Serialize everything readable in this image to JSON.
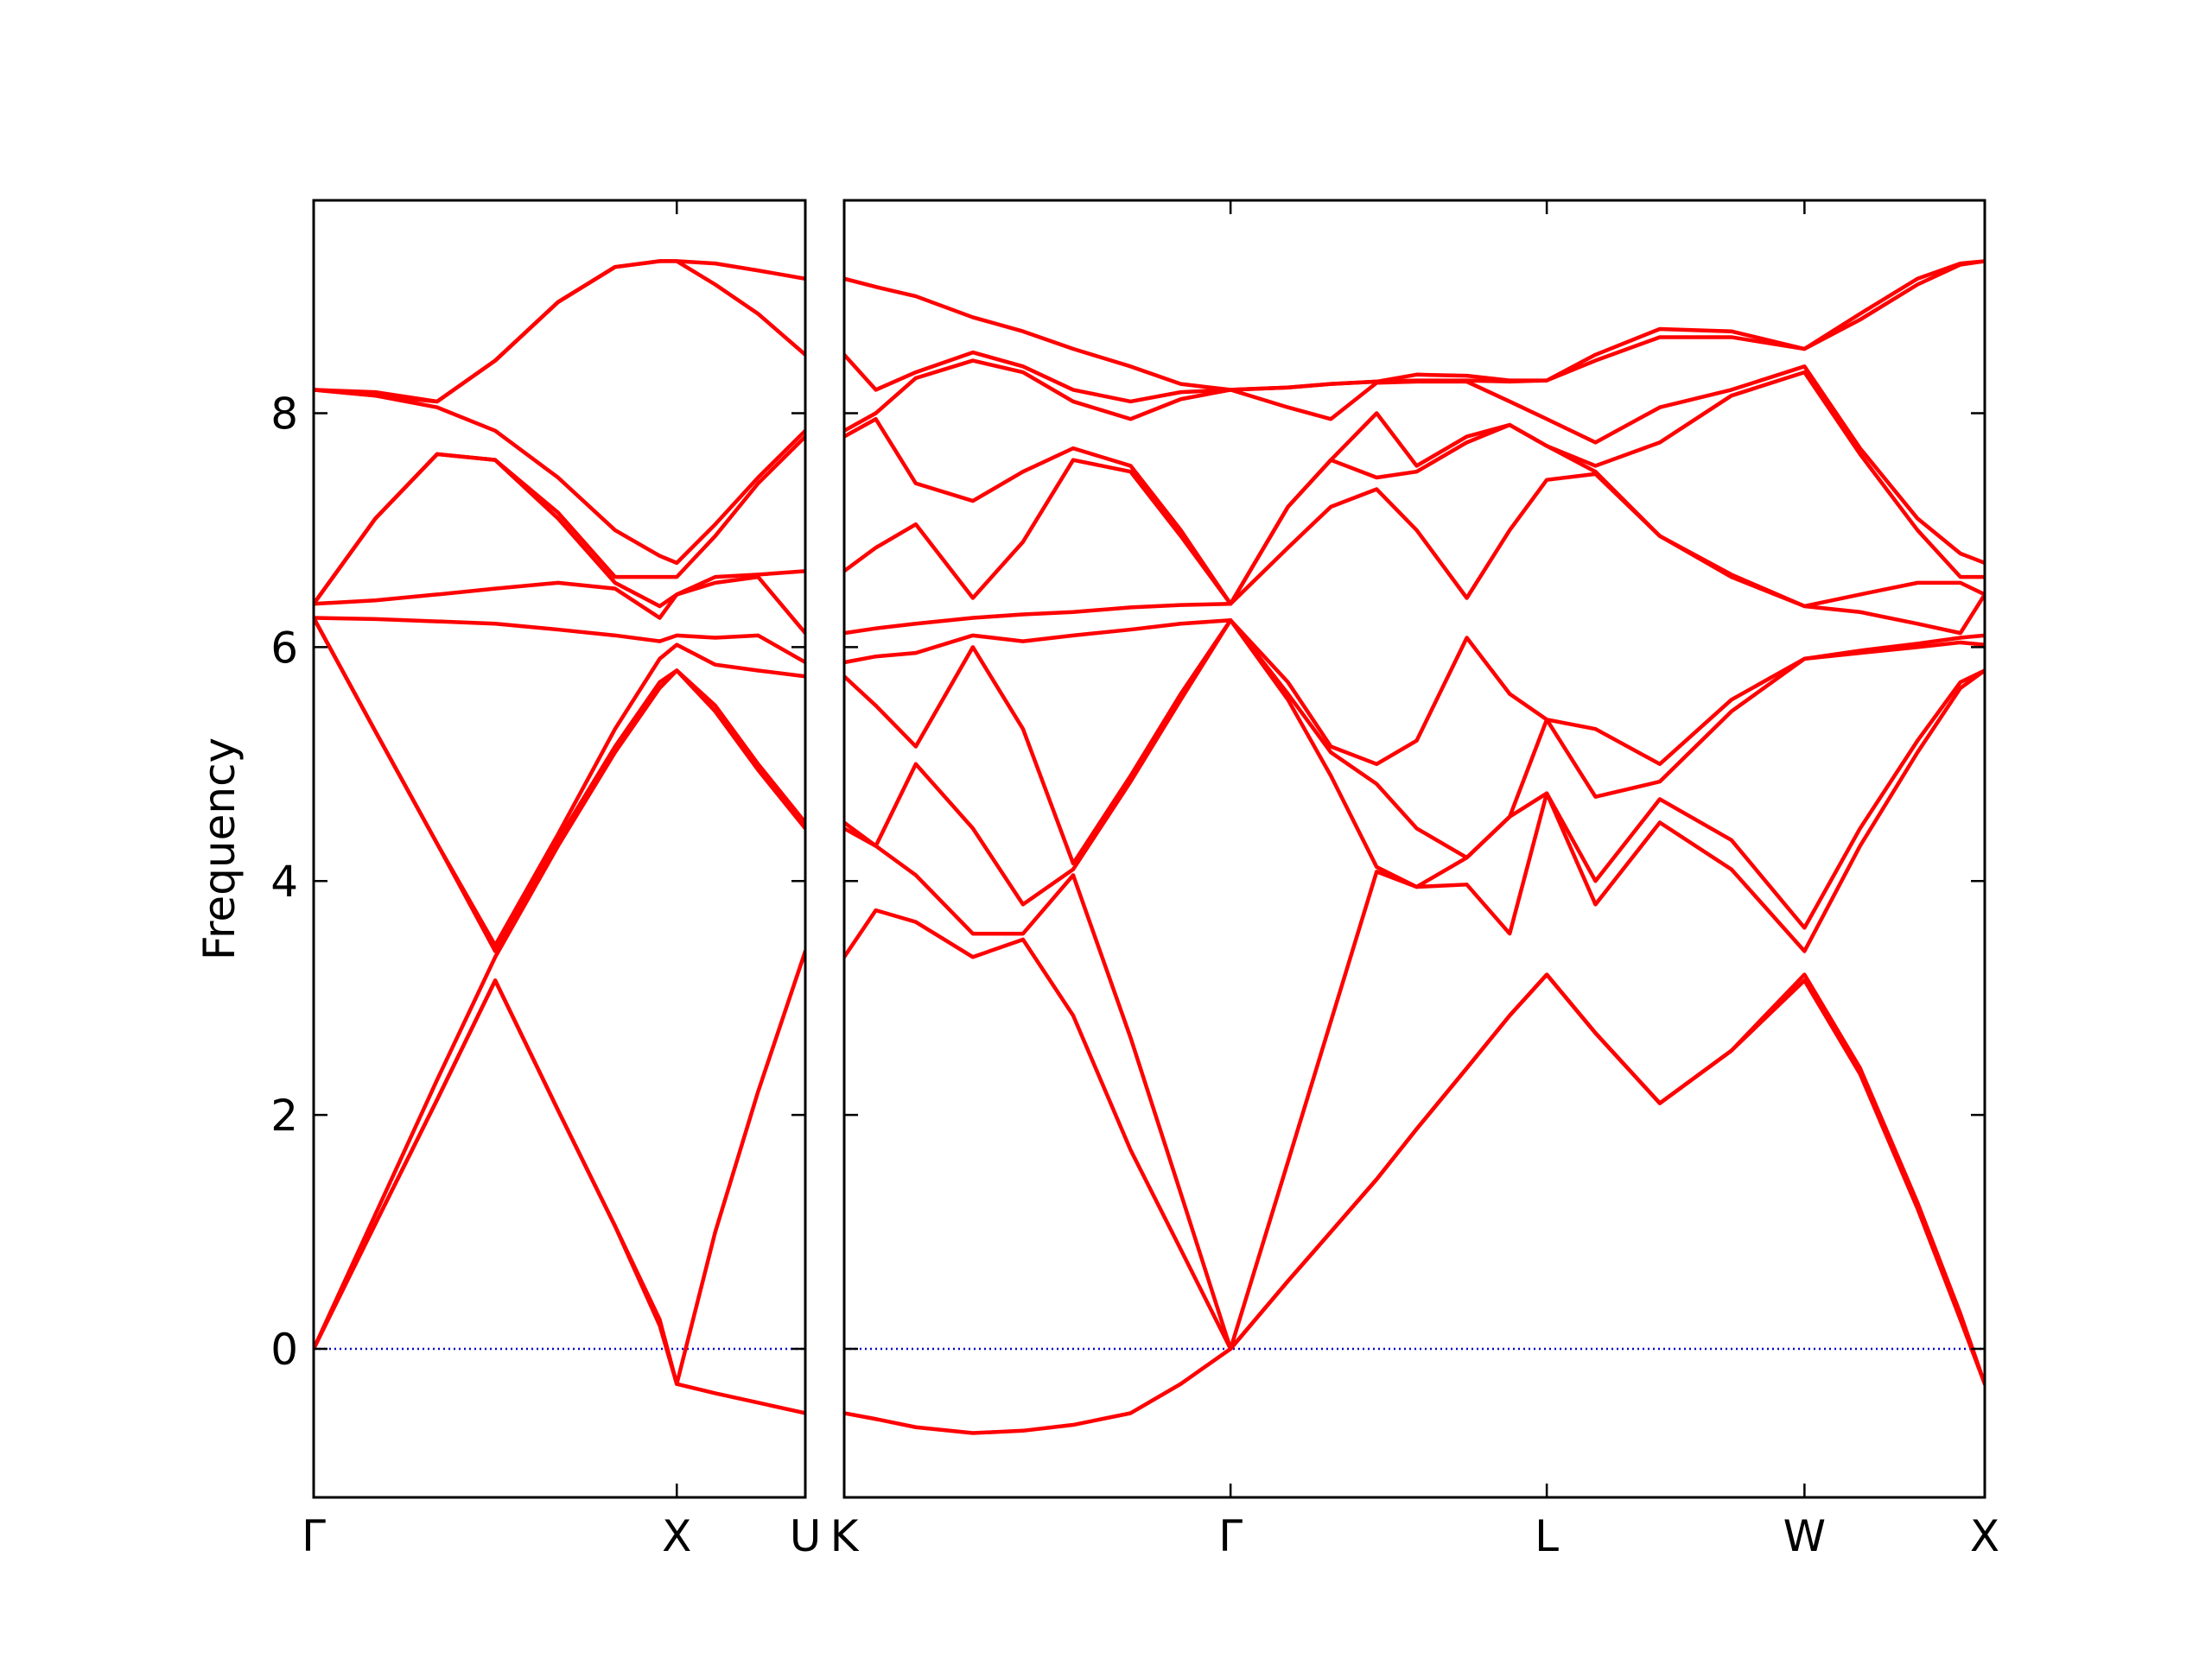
{
  "chart_data": [
    {
      "type": "line",
      "ylabel": "Frequency",
      "color": "#ff0000",
      "xlim": [
        0,
        1.354
      ],
      "xticks": [
        {
          "value": 0,
          "label": "Γ"
        },
        {
          "value": 1.0,
          "label": "X"
        },
        {
          "value": 1.354,
          "label": "U"
        }
      ],
      "ylim": [
        -1.27,
        9.82
      ],
      "yticks": [
        0,
        2,
        4,
        6,
        8
      ],
      "ytick_labels": true,
      "baseline": 0,
      "baseline_color": "#0000cc",
      "x": [
        0,
        0.17,
        0.34,
        0.5,
        0.673,
        0.83,
        0.953,
        1.0,
        1.106,
        1.224,
        1.354
      ],
      "series": [
        {
          "values": [
            0,
            1.07,
            2.13,
            3.15,
            2.04,
            1.05,
            0.2,
            -0.3,
            -0.38,
            -0.46,
            -0.55
          ]
        },
        {
          "values": [
            0,
            1.07,
            2.13,
            3.15,
            2.04,
            1.05,
            0.25,
            -0.3,
            1.0,
            2.2,
            3.4
          ]
        },
        {
          "values": [
            0,
            1.15,
            2.3,
            3.35,
            4.3,
            5.1,
            5.65,
            5.8,
            5.45,
            4.95,
            4.45
          ]
        },
        {
          "values": [
            6.25,
            5.28,
            4.32,
            3.4,
            4.35,
            5.15,
            5.7,
            5.8,
            5.5,
            5.0,
            4.5
          ]
        },
        {
          "values": [
            6.25,
            5.28,
            4.32,
            3.45,
            4.4,
            5.3,
            5.9,
            6.02,
            5.85,
            5.8,
            5.75
          ]
        },
        {
          "values": [
            6.25,
            6.24,
            6.22,
            6.2,
            6.15,
            6.1,
            6.05,
            6.1,
            6.08,
            6.1,
            5.87
          ]
        },
        {
          "values": [
            6.37,
            6.4,
            6.45,
            6.5,
            6.55,
            6.5,
            6.25,
            6.45,
            6.55,
            6.6,
            6.12
          ]
        },
        {
          "values": [
            6.37,
            7.1,
            7.65,
            7.6,
            7.1,
            6.55,
            6.35,
            6.45,
            6.6,
            6.62,
            6.65
          ]
        },
        {
          "values": [
            6.37,
            7.1,
            7.65,
            7.6,
            7.15,
            6.6,
            6.6,
            6.6,
            6.95,
            7.4,
            7.8
          ]
        },
        {
          "values": [
            8.2,
            8.15,
            8.05,
            7.85,
            7.45,
            7.0,
            6.78,
            6.72,
            7.05,
            7.45,
            7.85
          ]
        },
        {
          "values": [
            8.2,
            8.15,
            8.1,
            8.45,
            8.95,
            9.25,
            9.3,
            9.3,
            9.1,
            8.85,
            8.5
          ]
        },
        {
          "values": [
            8.2,
            8.18,
            8.1,
            8.45,
            8.95,
            9.25,
            9.3,
            9.3,
            9.28,
            9.22,
            9.15
          ]
        }
      ]
    },
    {
      "type": "line",
      "color": "#ff0000",
      "xlim": [
        1.354,
        4.492
      ],
      "xticks": [
        {
          "value": 1.354,
          "label": "K"
        },
        {
          "value": 2.417,
          "label": "Γ"
        },
        {
          "value": 3.287,
          "label": "L"
        },
        {
          "value": 3.996,
          "label": "W"
        },
        {
          "value": 4.492,
          "label": "X"
        }
      ],
      "ylim": [
        -1.27,
        9.82
      ],
      "yticks": [
        0,
        2,
        4,
        6,
        8
      ],
      "ytick_labels": false,
      "baseline": 0,
      "baseline_color": "#0000cc",
      "x": [
        1.354,
        1.441,
        1.551,
        1.708,
        1.846,
        1.984,
        2.142,
        2.28,
        2.417,
        2.575,
        2.693,
        2.819,
        2.929,
        3.067,
        3.185,
        3.287,
        3.421,
        3.598,
        3.795,
        3.996,
        4.149,
        4.307,
        4.425,
        4.492
      ],
      "series": [
        {
          "values": [
            -0.55,
            -0.6,
            -0.67,
            -0.72,
            -0.7,
            -0.65,
            -0.55,
            -0.3,
            0,
            0.58,
            1.0,
            1.45,
            1.88,
            2.4,
            2.85,
            3.2,
            2.7,
            2.1,
            2.55,
            3.15,
            2.35,
            1.2,
            0.25,
            -0.3
          ]
        },
        {
          "values": [
            3.35,
            3.75,
            3.65,
            3.35,
            3.5,
            2.85,
            1.7,
            0.85,
            0,
            0.58,
            1.0,
            1.45,
            1.88,
            2.4,
            2.85,
            3.2,
            2.7,
            2.1,
            2.55,
            3.2,
            2.4,
            1.25,
            0.3,
            -0.3
          ]
        },
        {
          "values": [
            4.45,
            4.3,
            4.05,
            3.55,
            3.55,
            4.05,
            2.66,
            1.33,
            0,
            1.6,
            2.8,
            4.08,
            3.95,
            3.97,
            3.55,
            4.75,
            3.8,
            4.5,
            4.1,
            3.4,
            4.3,
            5.1,
            5.65,
            5.8
          ]
        },
        {
          "values": [
            4.5,
            4.3,
            5.0,
            4.45,
            3.8,
            4.1,
            4.85,
            5.55,
            6.23,
            5.55,
            4.9,
            4.12,
            3.95,
            4.2,
            4.55,
            4.75,
            4.0,
            4.7,
            4.35,
            3.6,
            4.45,
            5.2,
            5.7,
            5.8
          ]
        },
        {
          "values": [
            5.75,
            5.5,
            5.15,
            6.0,
            5.3,
            4.15,
            4.9,
            5.6,
            6.23,
            5.6,
            5.1,
            4.83,
            4.45,
            4.2,
            4.55,
            5.38,
            4.72,
            4.85,
            5.45,
            5.9,
            5.95,
            6.0,
            6.04,
            6.02
          ]
        },
        {
          "values": [
            5.87,
            5.92,
            5.95,
            6.1,
            6.05,
            6.1,
            6.15,
            6.2,
            6.23,
            5.7,
            5.15,
            5.0,
            5.2,
            6.08,
            5.6,
            5.38,
            5.3,
            5.0,
            5.55,
            5.9,
            5.97,
            6.03,
            6.08,
            6.1
          ]
        },
        {
          "values": [
            6.12,
            6.16,
            6.2,
            6.25,
            6.28,
            6.3,
            6.34,
            6.36,
            6.37,
            6.85,
            7.2,
            7.35,
            7.0,
            6.42,
            7.0,
            7.43,
            7.48,
            6.95,
            6.6,
            6.35,
            6.3,
            6.2,
            6.12,
            6.45
          ]
        },
        {
          "values": [
            6.65,
            6.85,
            7.05,
            6.42,
            6.9,
            7.6,
            7.5,
            6.95,
            6.37,
            7.2,
            7.6,
            7.45,
            7.5,
            7.75,
            7.9,
            7.72,
            7.5,
            6.95,
            6.62,
            6.35,
            6.45,
            6.55,
            6.55,
            6.45
          ]
        },
        {
          "values": [
            7.8,
            7.95,
            7.4,
            7.25,
            7.5,
            7.7,
            7.55,
            7.0,
            6.37,
            7.2,
            7.6,
            8.0,
            7.55,
            7.8,
            7.9,
            7.72,
            7.55,
            7.75,
            8.15,
            8.35,
            7.65,
            7.0,
            6.6,
            6.6
          ]
        },
        {
          "values": [
            7.85,
            8.0,
            8.3,
            8.45,
            8.35,
            8.1,
            7.95,
            8.12,
            8.2,
            8.05,
            7.95,
            8.26,
            8.27,
            8.27,
            8.1,
            7.95,
            7.75,
            8.05,
            8.2,
            8.4,
            7.7,
            7.1,
            6.8,
            6.72
          ]
        },
        {
          "values": [
            8.5,
            8.2,
            8.35,
            8.52,
            8.4,
            8.2,
            8.1,
            8.18,
            8.2,
            8.22,
            8.25,
            8.27,
            8.28,
            8.28,
            8.27,
            8.28,
            8.45,
            8.65,
            8.65,
            8.55,
            8.8,
            9.1,
            9.27,
            9.3
          ]
        },
        {
          "values": [
            9.15,
            9.08,
            9.0,
            8.82,
            8.7,
            8.55,
            8.4,
            8.25,
            8.2,
            8.22,
            8.25,
            8.27,
            8.33,
            8.32,
            8.28,
            8.28,
            8.5,
            8.72,
            8.7,
            8.55,
            8.85,
            9.15,
            9.28,
            9.3
          ]
        }
      ]
    }
  ]
}
